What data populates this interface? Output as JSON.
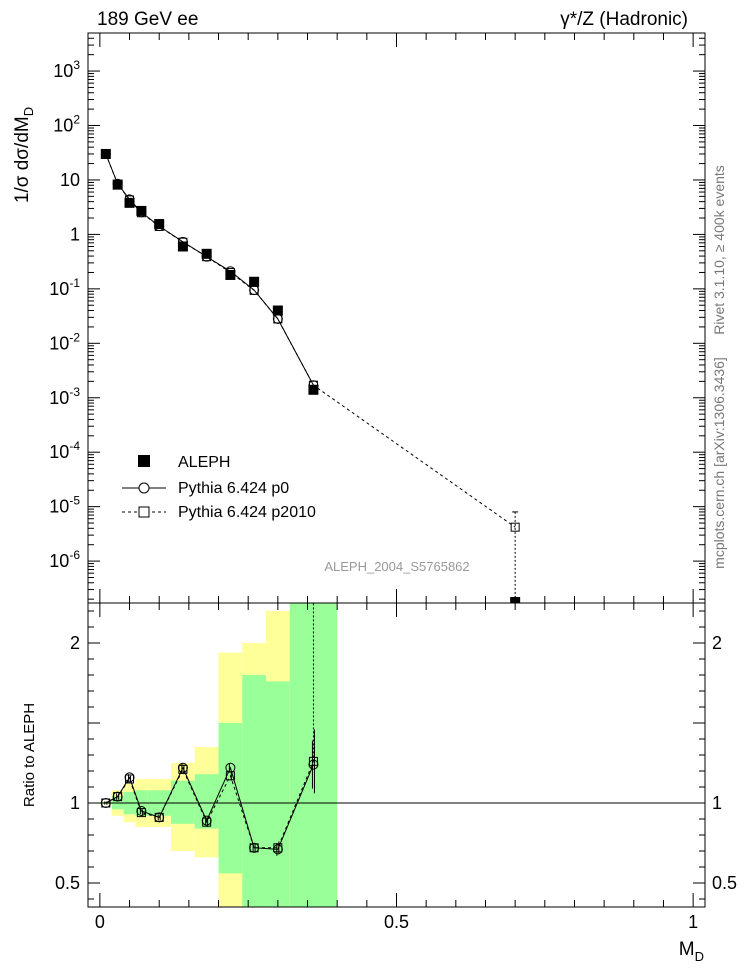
{
  "header": {
    "left": "189 GeV ee",
    "right_prefix": "γ",
    "right_suffix": "*/Z (Hadronic)"
  },
  "side_text": {
    "rivet": "Rivet 3.1.10, ≥ 400k events",
    "mcplots": "mcplots.cern.ch [arXiv:1306.3436]"
  },
  "watermark": "ALEPH_2004_S5765862",
  "chart_data": [
    {
      "type": "scatter",
      "panel": "main",
      "ylabel_main": "1/σ  dσ/dM",
      "ylabel_sub": "D",
      "yscale": "log",
      "ylim": [
        1.7e-07,
        5000
      ],
      "xlim": [
        -0.02,
        1.02
      ],
      "legend_placement": "middle-left",
      "y_ticks": [
        {
          "v": 1e-06,
          "base": "10",
          "exp": "-6"
        },
        {
          "v": 1e-05,
          "base": "10",
          "exp": "-5"
        },
        {
          "v": 0.0001,
          "base": "10",
          "exp": "-4"
        },
        {
          "v": 0.001,
          "base": "10",
          "exp": "-3"
        },
        {
          "v": 0.01,
          "base": "10",
          "exp": "-2"
        },
        {
          "v": 0.1,
          "base": "10",
          "exp": "-1"
        },
        {
          "v": 1,
          "base": "1",
          "exp": ""
        },
        {
          "v": 10,
          "base": "10",
          "exp": ""
        },
        {
          "v": 100,
          "base": "10",
          "exp": "2"
        },
        {
          "v": 1000,
          "base": "10",
          "exp": "3"
        }
      ],
      "series": [
        {
          "name": "ALEPH",
          "style": "data",
          "x": [
            0.01,
            0.03,
            0.05,
            0.07,
            0.1,
            0.14,
            0.18,
            0.22,
            0.26,
            0.3,
            0.36,
            0.7
          ],
          "y": [
            30,
            8.2,
            3.8,
            2.7,
            1.55,
            0.6,
            0.44,
            0.18,
            0.135,
            0.04,
            0.0014,
            1.6e-07
          ]
        },
        {
          "name": "Pythia 6.424 p0",
          "style": "circle-solid",
          "x": [
            0.01,
            0.03,
            0.05,
            0.07,
            0.1,
            0.14,
            0.18,
            0.22,
            0.26,
            0.3,
            0.36
          ],
          "y": [
            30,
            8.5,
            4.4,
            2.55,
            1.42,
            0.73,
            0.39,
            0.21,
            0.095,
            0.028,
            0.0017
          ]
        },
        {
          "name": "Pythia 6.424 p2010",
          "style": "square-dashed",
          "x": [
            0.01,
            0.03,
            0.05,
            0.07,
            0.1,
            0.14,
            0.18,
            0.22,
            0.26,
            0.3,
            0.36,
            0.7
          ],
          "y": [
            30,
            8.4,
            4.3,
            2.5,
            1.4,
            0.72,
            0.39,
            0.2,
            0.094,
            0.028,
            0.0017,
            4.2e-06
          ]
        }
      ]
    },
    {
      "type": "scatter",
      "panel": "ratio",
      "ylabel": "Ratio to ALEPH",
      "xlabel_main": "M",
      "xlabel_sub": "D",
      "ylim": [
        0.35,
        2.25
      ],
      "xlim": [
        -0.02,
        1.02
      ],
      "x_ticks": [
        {
          "v": 0,
          "label": "0"
        },
        {
          "v": 0.5,
          "label": "0.5"
        },
        {
          "v": 1,
          "label": "1"
        }
      ],
      "y_ticks": [
        {
          "v": 0.5,
          "label": "0.5"
        },
        {
          "v": 1,
          "label": "1"
        },
        {
          "v": 2,
          "label": "2"
        }
      ],
      "bands": [
        {
          "x0": 0.0,
          "x1": 0.02,
          "g_lo": 0.995,
          "g_hi": 1.005,
          "y_lo": 0.99,
          "y_hi": 1.01
        },
        {
          "x0": 0.02,
          "x1": 0.04,
          "g_lo": 0.96,
          "g_hi": 1.04,
          "y_lo": 0.92,
          "y_hi": 1.08
        },
        {
          "x0": 0.04,
          "x1": 0.06,
          "g_lo": 0.93,
          "g_hi": 1.07,
          "y_lo": 0.88,
          "y_hi": 1.12
        },
        {
          "x0": 0.06,
          "x1": 0.08,
          "g_lo": 0.92,
          "g_hi": 1.08,
          "y_lo": 0.85,
          "y_hi": 1.15
        },
        {
          "x0": 0.08,
          "x1": 0.12,
          "g_lo": 0.92,
          "g_hi": 1.08,
          "y_lo": 0.85,
          "y_hi": 1.15
        },
        {
          "x0": 0.12,
          "x1": 0.16,
          "g_lo": 0.87,
          "g_hi": 1.14,
          "y_lo": 0.7,
          "y_hi": 1.25
        },
        {
          "x0": 0.16,
          "x1": 0.2,
          "g_lo": 0.84,
          "g_hi": 1.18,
          "y_lo": 0.66,
          "y_hi": 1.35
        },
        {
          "x0": 0.2,
          "x1": 0.24,
          "g_lo": 0.56,
          "g_hi": 1.5,
          "y_lo": 0.35,
          "y_hi": 1.94
        },
        {
          "x0": 0.24,
          "x1": 0.28,
          "g_lo": 0.35,
          "g_hi": 1.8,
          "y_lo": 0.35,
          "y_hi": 2.0
        },
        {
          "x0": 0.28,
          "x1": 0.32,
          "g_lo": 0.35,
          "g_hi": 1.76,
          "y_lo": 0.35,
          "y_hi": 2.2
        },
        {
          "x0": 0.32,
          "x1": 0.4,
          "g_lo": 0.35,
          "g_hi": 2.25,
          "y_lo": 0.35,
          "y_hi": 2.25
        }
      ],
      "series": [
        {
          "name": "Pythia 6.424 p0",
          "style": "circle-solid",
          "x": [
            0.01,
            0.03,
            0.05,
            0.07,
            0.1,
            0.14,
            0.18,
            0.22,
            0.26,
            0.3,
            0.36
          ],
          "y": [
            1.0,
            1.04,
            1.16,
            0.95,
            0.91,
            1.22,
            0.89,
            1.22,
            0.72,
            0.71,
            1.24
          ],
          "err": [
            0.01,
            0.02,
            0.02,
            0.02,
            0.02,
            0.03,
            0.03,
            0.03,
            0.03,
            0.04,
            0.15
          ]
        },
        {
          "name": "Pythia 6.424 p2010",
          "style": "square-dashed",
          "x": [
            0.01,
            0.03,
            0.05,
            0.07,
            0.1,
            0.14,
            0.18,
            0.22,
            0.26,
            0.3,
            0.36
          ],
          "y": [
            1.0,
            1.04,
            1.15,
            0.94,
            0.91,
            1.21,
            0.88,
            1.17,
            0.72,
            0.72,
            1.26
          ],
          "err": [
            0.01,
            0.02,
            0.02,
            0.02,
            0.02,
            0.03,
            0.03,
            0.03,
            0.03,
            0.04,
            0.2
          ]
        }
      ]
    }
  ]
}
